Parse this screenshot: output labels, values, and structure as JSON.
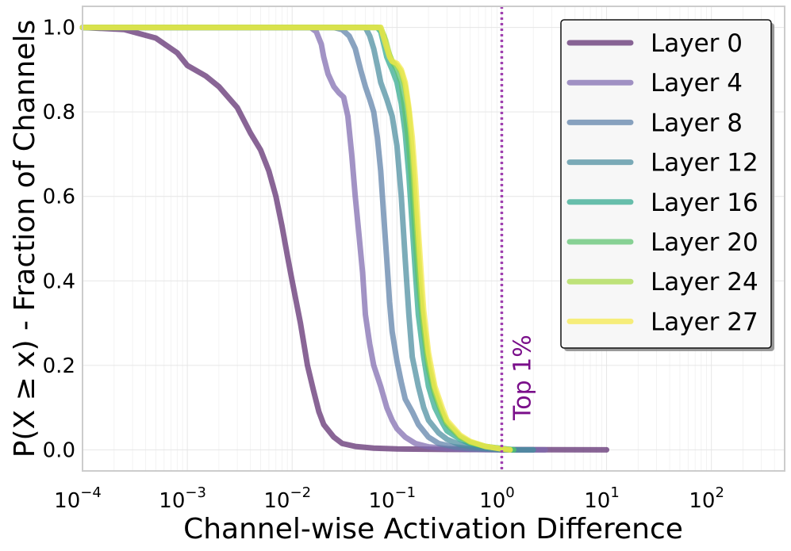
{
  "chart_data": {
    "type": "line",
    "xscale": "log",
    "xlabel": "Channel-wise Activation Difference",
    "ylabel": "P(X ≥ x) - Fraction of Channels",
    "xlim": [
      0.0001,
      500
    ],
    "ylim": [
      -0.05,
      1.05
    ],
    "grid": true,
    "legend_position": "top-right",
    "x_ticks": [
      {
        "value": 0.0001,
        "base": "10",
        "exp": "−4"
      },
      {
        "value": 0.001,
        "base": "10",
        "exp": "−3"
      },
      {
        "value": 0.01,
        "base": "10",
        "exp": "−2"
      },
      {
        "value": 0.1,
        "base": "10",
        "exp": "−1"
      },
      {
        "value": 1,
        "base": "10",
        "exp": "0"
      },
      {
        "value": 10,
        "base": "10",
        "exp": "1"
      },
      {
        "value": 100,
        "base": "10",
        "exp": "2"
      }
    ],
    "y_ticks": [
      {
        "value": 0.0,
        "label": "0.0"
      },
      {
        "value": 0.2,
        "label": "0.2"
      },
      {
        "value": 0.4,
        "label": "0.4"
      },
      {
        "value": 0.6,
        "label": "0.6"
      },
      {
        "value": 0.8,
        "label": "0.8"
      },
      {
        "value": 1.0,
        "label": "1.0"
      }
    ],
    "vline": {
      "x": 1.0,
      "label": "Top 1%",
      "color": "#a040b0",
      "text_color": "#7a0f8a"
    },
    "series": [
      {
        "name": "Layer 0",
        "color": "#5b2a6e",
        "points": [
          [
            0.0001,
            1.0
          ],
          [
            0.00025,
            0.995
          ],
          [
            0.0005,
            0.975
          ],
          [
            0.0008,
            0.94
          ],
          [
            0.001,
            0.91
          ],
          [
            0.0015,
            0.885
          ],
          [
            0.002,
            0.86
          ],
          [
            0.003,
            0.81
          ],
          [
            0.004,
            0.75
          ],
          [
            0.005,
            0.71
          ],
          [
            0.006,
            0.66
          ],
          [
            0.007,
            0.6
          ],
          [
            0.008,
            0.53
          ],
          [
            0.009,
            0.46
          ],
          [
            0.01,
            0.4
          ],
          [
            0.012,
            0.3
          ],
          [
            0.014,
            0.2
          ],
          [
            0.016,
            0.14
          ],
          [
            0.018,
            0.09
          ],
          [
            0.02,
            0.06
          ],
          [
            0.025,
            0.03
          ],
          [
            0.03,
            0.015
          ],
          [
            0.04,
            0.008
          ],
          [
            0.06,
            0.004
          ],
          [
            0.1,
            0.002
          ],
          [
            0.3,
            0.001
          ],
          [
            1.0,
            0.0005
          ],
          [
            3.0,
            0.0002
          ],
          [
            10.0,
            0.0
          ]
        ]
      },
      {
        "name": "Layer 4",
        "color": "#7e6aaf",
        "points": [
          [
            0.0001,
            1.0
          ],
          [
            0.015,
            1.0
          ],
          [
            0.017,
            0.99
          ],
          [
            0.019,
            0.96
          ],
          [
            0.02,
            0.93
          ],
          [
            0.022,
            0.89
          ],
          [
            0.025,
            0.86
          ],
          [
            0.028,
            0.845
          ],
          [
            0.031,
            0.835
          ],
          [
            0.034,
            0.79
          ],
          [
            0.037,
            0.7
          ],
          [
            0.04,
            0.6
          ],
          [
            0.043,
            0.52
          ],
          [
            0.047,
            0.42
          ],
          [
            0.05,
            0.32
          ],
          [
            0.055,
            0.25
          ],
          [
            0.06,
            0.2
          ],
          [
            0.07,
            0.15
          ],
          [
            0.08,
            0.1
          ],
          [
            0.09,
            0.07
          ],
          [
            0.1,
            0.05
          ],
          [
            0.12,
            0.03
          ],
          [
            0.15,
            0.015
          ],
          [
            0.2,
            0.007
          ],
          [
            0.3,
            0.003
          ],
          [
            0.5,
            0.001
          ],
          [
            1.0,
            0.0
          ],
          [
            2.6,
            0.0
          ]
        ]
      },
      {
        "name": "Layer 8",
        "color": "#5b7fa8",
        "points": [
          [
            0.0001,
            1.0
          ],
          [
            0.025,
            1.0
          ],
          [
            0.03,
            0.995
          ],
          [
            0.035,
            0.98
          ],
          [
            0.04,
            0.95
          ],
          [
            0.045,
            0.9
          ],
          [
            0.05,
            0.86
          ],
          [
            0.055,
            0.83
          ],
          [
            0.06,
            0.8
          ],
          [
            0.065,
            0.74
          ],
          [
            0.07,
            0.66
          ],
          [
            0.075,
            0.55
          ],
          [
            0.08,
            0.45
          ],
          [
            0.085,
            0.35
          ],
          [
            0.09,
            0.28
          ],
          [
            0.1,
            0.21
          ],
          [
            0.11,
            0.16
          ],
          [
            0.12,
            0.12
          ],
          [
            0.14,
            0.09
          ],
          [
            0.16,
            0.06
          ],
          [
            0.2,
            0.03
          ],
          [
            0.25,
            0.015
          ],
          [
            0.35,
            0.007
          ],
          [
            0.5,
            0.003
          ],
          [
            1.0,
            0.0
          ],
          [
            2.0,
            0.0
          ]
        ]
      },
      {
        "name": "Layer 12",
        "color": "#4a8c9e",
        "points": [
          [
            0.0001,
            1.0
          ],
          [
            0.05,
            1.0
          ],
          [
            0.055,
            0.98
          ],
          [
            0.06,
            0.95
          ],
          [
            0.065,
            0.91
          ],
          [
            0.07,
            0.87
          ],
          [
            0.08,
            0.83
          ],
          [
            0.09,
            0.79
          ],
          [
            0.1,
            0.72
          ],
          [
            0.11,
            0.6
          ],
          [
            0.12,
            0.45
          ],
          [
            0.13,
            0.32
          ],
          [
            0.14,
            0.22
          ],
          [
            0.16,
            0.15
          ],
          [
            0.18,
            0.1
          ],
          [
            0.2,
            0.07
          ],
          [
            0.25,
            0.04
          ],
          [
            0.3,
            0.025
          ],
          [
            0.4,
            0.012
          ],
          [
            0.6,
            0.005
          ],
          [
            1.0,
            0.0
          ],
          [
            2.0,
            0.0
          ]
        ]
      },
      {
        "name": "Layer 16",
        "color": "#2fa88e",
        "points": [
          [
            0.0001,
            1.0
          ],
          [
            0.065,
            1.0
          ],
          [
            0.07,
            0.99
          ],
          [
            0.075,
            0.96
          ],
          [
            0.08,
            0.93
          ],
          [
            0.09,
            0.9
          ],
          [
            0.1,
            0.87
          ],
          [
            0.11,
            0.82
          ],
          [
            0.12,
            0.75
          ],
          [
            0.13,
            0.65
          ],
          [
            0.14,
            0.53
          ],
          [
            0.15,
            0.42
          ],
          [
            0.16,
            0.32
          ],
          [
            0.18,
            0.22
          ],
          [
            0.2,
            0.15
          ],
          [
            0.23,
            0.1
          ],
          [
            0.27,
            0.065
          ],
          [
            0.3,
            0.045
          ],
          [
            0.4,
            0.025
          ],
          [
            0.5,
            0.015
          ],
          [
            0.7,
            0.007
          ],
          [
            1.0,
            0.003
          ],
          [
            1.3,
            0.0
          ]
        ]
      },
      {
        "name": "Layer 20",
        "color": "#5cc26e",
        "points": [
          [
            0.0001,
            1.0
          ],
          [
            0.068,
            1.0
          ],
          [
            0.075,
            0.98
          ],
          [
            0.08,
            0.95
          ],
          [
            0.09,
            0.92
          ],
          [
            0.1,
            0.9
          ],
          [
            0.11,
            0.87
          ],
          [
            0.12,
            0.8
          ],
          [
            0.13,
            0.72
          ],
          [
            0.14,
            0.62
          ],
          [
            0.15,
            0.5
          ],
          [
            0.16,
            0.4
          ],
          [
            0.18,
            0.28
          ],
          [
            0.2,
            0.19
          ],
          [
            0.23,
            0.13
          ],
          [
            0.27,
            0.085
          ],
          [
            0.3,
            0.06
          ],
          [
            0.4,
            0.03
          ],
          [
            0.5,
            0.018
          ],
          [
            0.7,
            0.008
          ],
          [
            1.0,
            0.003
          ],
          [
            1.3,
            0.0
          ]
        ]
      },
      {
        "name": "Layer 24",
        "color": "#a8d948",
        "points": [
          [
            0.0001,
            1.0
          ],
          [
            0.07,
            1.0
          ],
          [
            0.078,
            0.97
          ],
          [
            0.085,
            0.935
          ],
          [
            0.09,
            0.92
          ],
          [
            0.1,
            0.91
          ],
          [
            0.11,
            0.895
          ],
          [
            0.12,
            0.86
          ],
          [
            0.13,
            0.8
          ],
          [
            0.14,
            0.7
          ],
          [
            0.15,
            0.58
          ],
          [
            0.16,
            0.47
          ],
          [
            0.17,
            0.37
          ],
          [
            0.18,
            0.3
          ],
          [
            0.2,
            0.21
          ],
          [
            0.23,
            0.14
          ],
          [
            0.27,
            0.09
          ],
          [
            0.3,
            0.065
          ],
          [
            0.4,
            0.032
          ],
          [
            0.5,
            0.018
          ],
          [
            0.7,
            0.008
          ],
          [
            1.0,
            0.002
          ],
          [
            1.2,
            0.0
          ]
        ]
      },
      {
        "name": "Layer 27",
        "color": "#f5e94a",
        "points": [
          [
            0.0001,
            1.0
          ],
          [
            0.07,
            1.0
          ],
          [
            0.078,
            0.96
          ],
          [
            0.085,
            0.93
          ],
          [
            0.09,
            0.92
          ],
          [
            0.1,
            0.915
          ],
          [
            0.11,
            0.9
          ],
          [
            0.12,
            0.87
          ],
          [
            0.13,
            0.81
          ],
          [
            0.14,
            0.74
          ],
          [
            0.15,
            0.64
          ],
          [
            0.16,
            0.52
          ],
          [
            0.17,
            0.42
          ],
          [
            0.18,
            0.33
          ],
          [
            0.2,
            0.23
          ],
          [
            0.23,
            0.15
          ],
          [
            0.27,
            0.1
          ],
          [
            0.3,
            0.07
          ],
          [
            0.4,
            0.035
          ],
          [
            0.5,
            0.02
          ],
          [
            0.7,
            0.008
          ],
          [
            1.0,
            0.002
          ],
          [
            1.2,
            0.0
          ]
        ]
      }
    ]
  }
}
